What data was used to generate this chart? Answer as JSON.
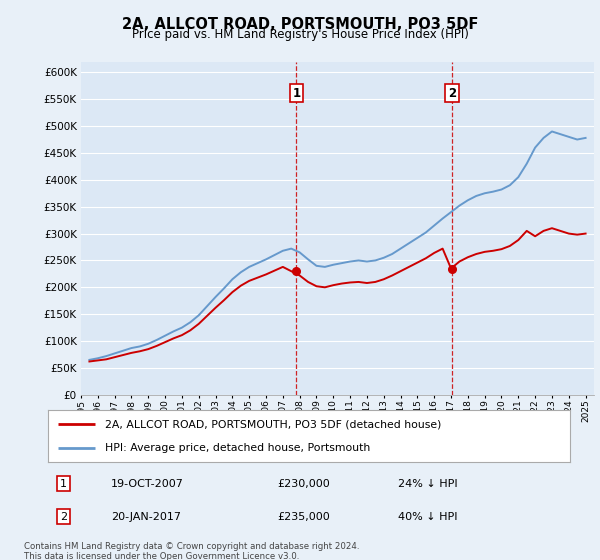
{
  "title": "2A, ALLCOT ROAD, PORTSMOUTH, PO3 5DF",
  "subtitle": "Price paid vs. HM Land Registry's House Price Index (HPI)",
  "ylim": [
    0,
    620000
  ],
  "yticks": [
    0,
    50000,
    100000,
    150000,
    200000,
    250000,
    300000,
    350000,
    400000,
    450000,
    500000,
    550000,
    600000
  ],
  "xlim_start": 1995.0,
  "xlim_end": 2025.5,
  "sale1_date": 2007.8,
  "sale1_price": 230000,
  "sale1_text": "19-OCT-2007",
  "sale1_amount": "£230,000",
  "sale1_hpi": "24% ↓ HPI",
  "sale2_date": 2017.05,
  "sale2_price": 235000,
  "sale2_text": "20-JAN-2017",
  "sale2_amount": "£235,000",
  "sale2_hpi": "40% ↓ HPI",
  "hpi_color": "#6699cc",
  "sale_color": "#cc0000",
  "vline_color": "#cc0000",
  "marker_color": "#cc0000",
  "legend_label1": "2A, ALLCOT ROAD, PORTSMOUTH, PO3 5DF (detached house)",
  "legend_label2": "HPI: Average price, detached house, Portsmouth",
  "footnote": "Contains HM Land Registry data © Crown copyright and database right 2024.\nThis data is licensed under the Open Government Licence v3.0.",
  "background_color": "#e8f0f8",
  "plot_bg_color": "#dce8f5",
  "years_hpi": [
    1995.5,
    1996.0,
    1996.5,
    1997.0,
    1997.5,
    1998.0,
    1998.5,
    1999.0,
    1999.5,
    2000.0,
    2000.5,
    2001.0,
    2001.5,
    2002.0,
    2002.5,
    2003.0,
    2003.5,
    2004.0,
    2004.5,
    2005.0,
    2005.5,
    2006.0,
    2006.5,
    2007.0,
    2007.5,
    2008.0,
    2008.5,
    2009.0,
    2009.5,
    2010.0,
    2010.5,
    2011.0,
    2011.5,
    2012.0,
    2012.5,
    2013.0,
    2013.5,
    2014.0,
    2014.5,
    2015.0,
    2015.5,
    2016.0,
    2016.5,
    2017.0,
    2017.5,
    2018.0,
    2018.5,
    2019.0,
    2019.5,
    2020.0,
    2020.5,
    2021.0,
    2021.5,
    2022.0,
    2022.5,
    2023.0,
    2023.5,
    2024.0,
    2024.5,
    2025.0
  ],
  "hpi_values": [
    65000,
    68000,
    72000,
    77000,
    82000,
    87000,
    90000,
    95000,
    102000,
    110000,
    118000,
    125000,
    135000,
    148000,
    165000,
    182000,
    198000,
    215000,
    228000,
    238000,
    245000,
    252000,
    260000,
    268000,
    272000,
    265000,
    252000,
    240000,
    238000,
    242000,
    245000,
    248000,
    250000,
    248000,
    250000,
    255000,
    262000,
    272000,
    282000,
    292000,
    302000,
    315000,
    328000,
    340000,
    352000,
    362000,
    370000,
    375000,
    378000,
    382000,
    390000,
    405000,
    430000,
    460000,
    478000,
    490000,
    485000,
    480000,
    475000,
    478000
  ],
  "years_sale": [
    1995.5,
    1996.0,
    1996.5,
    1997.0,
    1997.5,
    1998.0,
    1998.5,
    1999.0,
    1999.5,
    2000.0,
    2000.5,
    2001.0,
    2001.5,
    2002.0,
    2002.5,
    2003.0,
    2003.5,
    2004.0,
    2004.5,
    2005.0,
    2005.5,
    2006.0,
    2006.5,
    2007.0,
    2007.5,
    2008.0,
    2008.5,
    2009.0,
    2009.5,
    2010.0,
    2010.5,
    2011.0,
    2011.5,
    2012.0,
    2012.5,
    2013.0,
    2013.5,
    2014.0,
    2014.5,
    2015.0,
    2015.5,
    2016.0,
    2016.5,
    2017.0,
    2017.5,
    2018.0,
    2018.5,
    2019.0,
    2019.5,
    2020.0,
    2020.5,
    2021.0,
    2021.5,
    2022.0,
    2022.5,
    2023.0,
    2023.5,
    2024.0,
    2024.5,
    2025.0
  ],
  "sale_values": [
    62000,
    64000,
    66000,
    70000,
    74000,
    78000,
    81000,
    85000,
    91000,
    98000,
    105000,
    111000,
    120000,
    132000,
    147000,
    162000,
    176000,
    191000,
    203000,
    212000,
    218000,
    224000,
    231000,
    238000,
    230000,
    222000,
    210000,
    202000,
    200000,
    204000,
    207000,
    209000,
    210000,
    208000,
    210000,
    215000,
    222000,
    230000,
    238000,
    246000,
    254000,
    264000,
    272000,
    235000,
    248000,
    256000,
    262000,
    266000,
    268000,
    271000,
    277000,
    288000,
    305000,
    295000,
    305000,
    310000,
    305000,
    300000,
    298000,
    300000
  ]
}
